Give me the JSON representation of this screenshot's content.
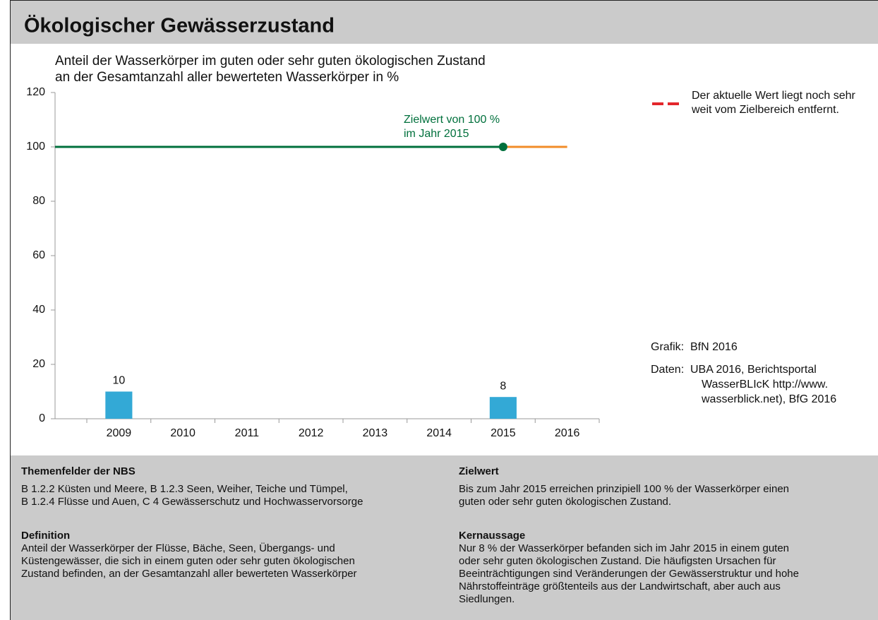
{
  "chart_data": {
    "type": "bar",
    "title": "Ökologischer Gewässerzustand",
    "subtitle": [
      "Anteil der Wasserkörper im guten oder sehr guten ökologischen Zustand",
      "an der Gesamtanzahl aller bewerteten Wasserkörper in %"
    ],
    "categories": [
      "2009",
      "2010",
      "2011",
      "2012",
      "2013",
      "2014",
      "2015",
      "2016"
    ],
    "values": [
      10,
      null,
      null,
      null,
      null,
      null,
      8,
      null
    ],
    "color": "#33a9d6",
    "ylim": [
      0,
      120
    ],
    "yticks": [
      0,
      20,
      40,
      60,
      80,
      100,
      120
    ],
    "target": {
      "value": 100,
      "year": "2015",
      "color": "#00703c",
      "after_color": "#f28c28",
      "annotation": [
        "Zielwert von 100 %",
        "im Jahr 2015"
      ]
    },
    "legend": {
      "color": "#e3262b",
      "text": [
        "Der aktuelle Wert liegt noch sehr",
        "weit vom Zielbereich entfernt."
      ]
    },
    "source": {
      "graphic_label": "Grafik:",
      "graphic": "BfN 2016",
      "data_label": "Daten:",
      "data": [
        "UBA 2016, Berichtsportal",
        "WasserBLIcK http://www.",
        "wasserblick.net), BfG 2016"
      ]
    }
  },
  "info": {
    "left": [
      {
        "heading": "Themenfelder der NBS",
        "lines": [
          "B 1.2.2 Küsten und Meere, B 1.2.3 Seen, Weiher, Teiche und Tümpel,",
          "B 1.2.4 Flüsse und Auen, C 4 Gewässerschutz und Hochwasservorsorge"
        ]
      },
      {
        "heading": "Definition",
        "lines": [
          "Anteil der Wasserkörper der Flüsse, Bäche, Seen, Übergangs- und",
          "Küstengewässer, die sich in einem guten oder sehr guten ökologischen",
          "Zustand befinden, an der Gesamtanzahl aller bewerteten Wasserkörper"
        ]
      }
    ],
    "right": [
      {
        "heading": "Zielwert",
        "lines": [
          "Bis zum Jahr 2015 erreichen prinzipiell 100 % der Wasserkörper einen",
          "guten oder sehr guten ökologischen Zustand."
        ]
      },
      {
        "heading": "Kernaussage",
        "lines": [
          "Nur 8 % der Wasserkörper befanden sich im Jahr 2015 in einem guten",
          "oder sehr guten ökologischen Zustand. Die häufigsten Ursachen für",
          "Beeinträchtigungen sind Veränderungen der Gewässerstruktur und hohe",
          "Nährstoffeinträge größtenteils aus der Landwirtschaft, aber auch aus",
          "Siedlungen."
        ]
      }
    ]
  }
}
